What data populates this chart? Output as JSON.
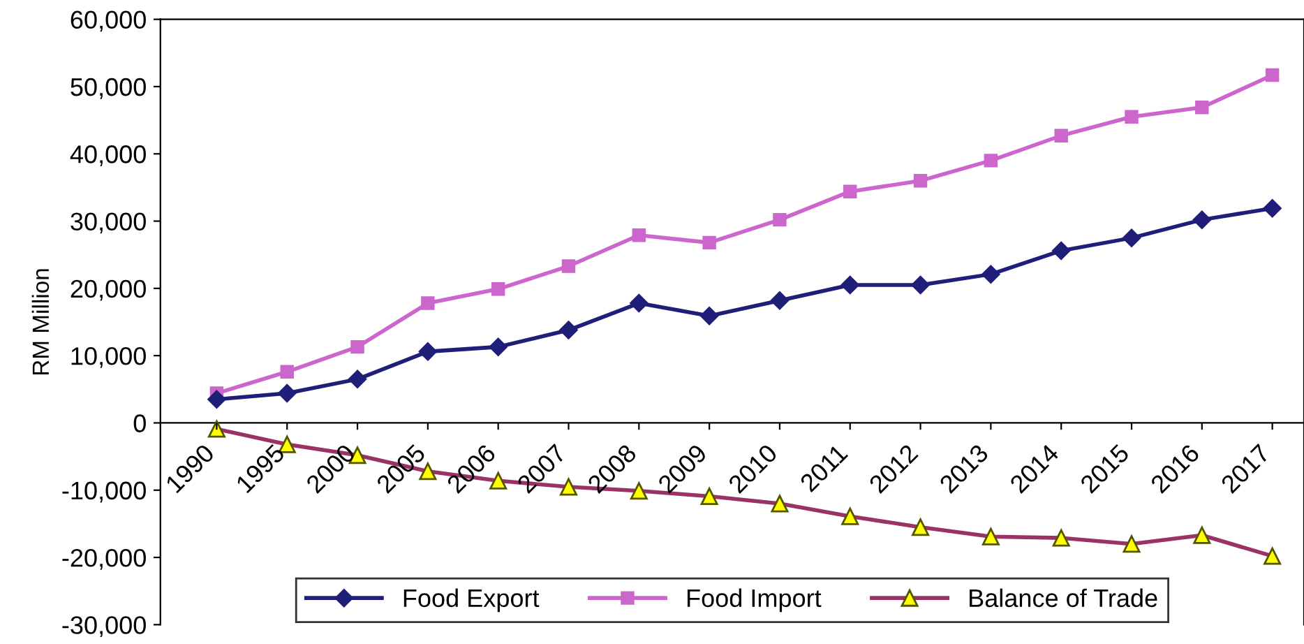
{
  "chart_data": {
    "type": "line",
    "ylabel": "RM Million",
    "categories": [
      "1990",
      "1995",
      "2000",
      "2005",
      "2006",
      "2007",
      "2008",
      "2009",
      "2010",
      "2011",
      "2012",
      "2013",
      "2014",
      "2015",
      "2016",
      "2017"
    ],
    "series": [
      {
        "name": "Food Export",
        "color": "#1f1f7a",
        "marker": "diamond",
        "values": [
          3500,
          4400,
          6500,
          10600,
          11300,
          13800,
          17800,
          15900,
          18200,
          20500,
          20500,
          22100,
          25600,
          27500,
          30200,
          31900
        ]
      },
      {
        "name": "Food Import",
        "color": "#cc66cc",
        "marker": "square",
        "values": [
          4400,
          7600,
          11300,
          17800,
          19900,
          23300,
          27900,
          26800,
          30200,
          34400,
          36000,
          39000,
          42700,
          45500,
          46900,
          51700
        ]
      },
      {
        "name": "Balance of Trade",
        "color": "#993366",
        "marker": "triangle",
        "values": [
          -900,
          -3200,
          -4800,
          -7200,
          -8600,
          -9500,
          -10100,
          -10900,
          -12000,
          -13900,
          -15500,
          -16900,
          -17100,
          -18000,
          -16700,
          -19800
        ]
      }
    ],
    "ylim": [
      -30000,
      60000
    ],
    "yticks": [
      {
        "value": -30000,
        "label": "-30,000"
      },
      {
        "value": -20000,
        "label": "-20,000"
      },
      {
        "value": -10000,
        "label": "-10,000"
      },
      0,
      {
        "value": 10000,
        "label": "10,000"
      },
      {
        "value": 20000,
        "label": "20,000"
      },
      {
        "value": 30000,
        "label": "30,000"
      },
      {
        "value": 40000,
        "label": "40,000"
      },
      {
        "value": 50000,
        "label": "50,000"
      },
      {
        "value": 60000,
        "label": "60,000"
      }
    ],
    "grid": false,
    "legend": "bottom",
    "line_style": "solid"
  }
}
